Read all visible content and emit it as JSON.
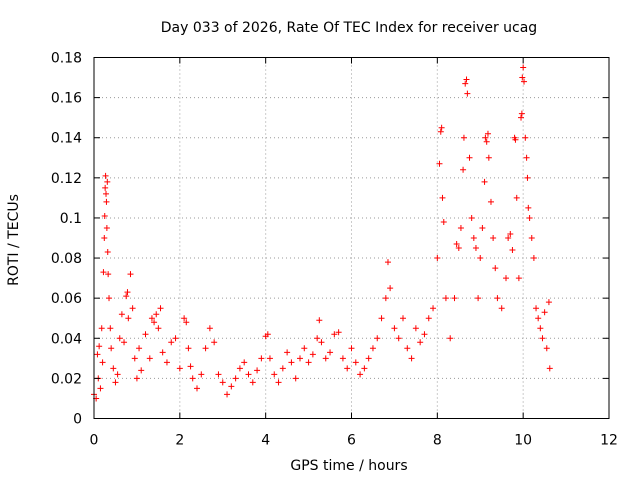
{
  "chart_data": {
    "type": "scatter",
    "title": "Day 033 of 2026, Rate Of TEC Index for receiver ucag",
    "xlabel": "GPS time / hours",
    "ylabel": "ROTI / TECUs",
    "xlim": [
      0,
      12
    ],
    "ylim": [
      0,
      0.18
    ],
    "x_ticks": [
      "0",
      "2",
      "4",
      "6",
      "8",
      "10",
      "12"
    ],
    "y_ticks": [
      "0",
      "0.02",
      "0.04",
      "0.06",
      "0.08",
      "0.1",
      "0.12",
      "0.14",
      "0.16",
      "0.18"
    ],
    "grid": true,
    "marker": "+",
    "color": "#ff0000",
    "series": [
      {
        "name": "ROTI",
        "points": [
          [
            0.0,
            0.012
          ],
          [
            0.05,
            0.01
          ],
          [
            0.08,
            0.032
          ],
          [
            0.1,
            0.02
          ],
          [
            0.12,
            0.036
          ],
          [
            0.15,
            0.015
          ],
          [
            0.18,
            0.045
          ],
          [
            0.2,
            0.028
          ],
          [
            0.22,
            0.073
          ],
          [
            0.24,
            0.09
          ],
          [
            0.25,
            0.101
          ],
          [
            0.26,
            0.115
          ],
          [
            0.27,
            0.121
          ],
          [
            0.28,
            0.112
          ],
          [
            0.29,
            0.108
          ],
          [
            0.3,
            0.095
          ],
          [
            0.31,
            0.118
          ],
          [
            0.32,
            0.083
          ],
          [
            0.33,
            0.072
          ],
          [
            0.35,
            0.06
          ],
          [
            0.38,
            0.045
          ],
          [
            0.4,
            0.035
          ],
          [
            0.45,
            0.025
          ],
          [
            0.5,
            0.018
          ],
          [
            0.55,
            0.022
          ],
          [
            0.6,
            0.04
          ],
          [
            0.65,
            0.052
          ],
          [
            0.7,
            0.038
          ],
          [
            0.75,
            0.061
          ],
          [
            0.78,
            0.063
          ],
          [
            0.8,
            0.05
          ],
          [
            0.85,
            0.072
          ],
          [
            0.9,
            0.055
          ],
          [
            0.95,
            0.03
          ],
          [
            1.0,
            0.02
          ],
          [
            1.05,
            0.035
          ],
          [
            1.1,
            0.024
          ],
          [
            1.2,
            0.042
          ],
          [
            1.3,
            0.03
          ],
          [
            1.35,
            0.05
          ],
          [
            1.4,
            0.048
          ],
          [
            1.45,
            0.052
          ],
          [
            1.5,
            0.045
          ],
          [
            1.55,
            0.055
          ],
          [
            1.6,
            0.033
          ],
          [
            1.7,
            0.028
          ],
          [
            1.8,
            0.038
          ],
          [
            1.9,
            0.04
          ],
          [
            2.0,
            0.025
          ],
          [
            2.1,
            0.05
          ],
          [
            2.15,
            0.048
          ],
          [
            2.2,
            0.035
          ],
          [
            2.25,
            0.026
          ],
          [
            2.3,
            0.02
          ],
          [
            2.4,
            0.015
          ],
          [
            2.5,
            0.022
          ],
          [
            2.6,
            0.035
          ],
          [
            2.7,
            0.045
          ],
          [
            2.8,
            0.038
          ],
          [
            2.9,
            0.022
          ],
          [
            3.0,
            0.018
          ],
          [
            3.1,
            0.012
          ],
          [
            3.2,
            0.016
          ],
          [
            3.3,
            0.02
          ],
          [
            3.4,
            0.025
          ],
          [
            3.5,
            0.028
          ],
          [
            3.6,
            0.022
          ],
          [
            3.7,
            0.018
          ],
          [
            3.8,
            0.024
          ],
          [
            3.9,
            0.03
          ],
          [
            4.0,
            0.041
          ],
          [
            4.05,
            0.042
          ],
          [
            4.1,
            0.03
          ],
          [
            4.2,
            0.022
          ],
          [
            4.3,
            0.018
          ],
          [
            4.4,
            0.025
          ],
          [
            4.5,
            0.033
          ],
          [
            4.6,
            0.028
          ],
          [
            4.7,
            0.02
          ],
          [
            4.8,
            0.03
          ],
          [
            4.9,
            0.035
          ],
          [
            5.0,
            0.028
          ],
          [
            5.1,
            0.032
          ],
          [
            5.2,
            0.04
          ],
          [
            5.25,
            0.049
          ],
          [
            5.3,
            0.038
          ],
          [
            5.4,
            0.03
          ],
          [
            5.5,
            0.033
          ],
          [
            5.6,
            0.042
          ],
          [
            5.7,
            0.043
          ],
          [
            5.8,
            0.03
          ],
          [
            5.9,
            0.025
          ],
          [
            6.0,
            0.035
          ],
          [
            6.1,
            0.028
          ],
          [
            6.2,
            0.022
          ],
          [
            6.3,
            0.025
          ],
          [
            6.4,
            0.03
          ],
          [
            6.5,
            0.035
          ],
          [
            6.6,
            0.04
          ],
          [
            6.7,
            0.05
          ],
          [
            6.8,
            0.06
          ],
          [
            6.85,
            0.078
          ],
          [
            6.9,
            0.065
          ],
          [
            7.0,
            0.045
          ],
          [
            7.1,
            0.04
          ],
          [
            7.2,
            0.05
          ],
          [
            7.3,
            0.035
          ],
          [
            7.4,
            0.03
          ],
          [
            7.5,
            0.045
          ],
          [
            7.6,
            0.038
          ],
          [
            7.7,
            0.042
          ],
          [
            7.8,
            0.05
          ],
          [
            7.9,
            0.055
          ],
          [
            8.0,
            0.08
          ],
          [
            8.05,
            0.127
          ],
          [
            8.08,
            0.143
          ],
          [
            8.1,
            0.145
          ],
          [
            8.12,
            0.11
          ],
          [
            8.15,
            0.098
          ],
          [
            8.2,
            0.06
          ],
          [
            8.3,
            0.04
          ],
          [
            8.4,
            0.06
          ],
          [
            8.45,
            0.087
          ],
          [
            8.5,
            0.085
          ],
          [
            8.55,
            0.095
          ],
          [
            8.6,
            0.124
          ],
          [
            8.62,
            0.14
          ],
          [
            8.65,
            0.167
          ],
          [
            8.68,
            0.169
          ],
          [
            8.7,
            0.162
          ],
          [
            8.75,
            0.13
          ],
          [
            8.8,
            0.1
          ],
          [
            8.85,
            0.09
          ],
          [
            8.9,
            0.085
          ],
          [
            8.95,
            0.06
          ],
          [
            9.0,
            0.08
          ],
          [
            9.05,
            0.095
          ],
          [
            9.1,
            0.118
          ],
          [
            9.12,
            0.14
          ],
          [
            9.15,
            0.138
          ],
          [
            9.18,
            0.142
          ],
          [
            9.2,
            0.13
          ],
          [
            9.25,
            0.108
          ],
          [
            9.3,
            0.09
          ],
          [
            9.35,
            0.075
          ],
          [
            9.4,
            0.06
          ],
          [
            9.5,
            0.055
          ],
          [
            9.6,
            0.07
          ],
          [
            9.65,
            0.09
          ],
          [
            9.7,
            0.092
          ],
          [
            9.75,
            0.084
          ],
          [
            9.8,
            0.14
          ],
          [
            9.82,
            0.139
          ],
          [
            9.85,
            0.11
          ],
          [
            9.9,
            0.07
          ],
          [
            9.95,
            0.15
          ],
          [
            9.97,
            0.152
          ],
          [
            9.98,
            0.17
          ],
          [
            10.0,
            0.175
          ],
          [
            10.02,
            0.168
          ],
          [
            10.05,
            0.14
          ],
          [
            10.08,
            0.13
          ],
          [
            10.1,
            0.12
          ],
          [
            10.12,
            0.105
          ],
          [
            10.15,
            0.1
          ],
          [
            10.2,
            0.09
          ],
          [
            10.25,
            0.08
          ],
          [
            10.3,
            0.055
          ],
          [
            10.35,
            0.05
          ],
          [
            10.4,
            0.045
          ],
          [
            10.45,
            0.04
          ],
          [
            10.5,
            0.053
          ],
          [
            10.55,
            0.035
          ],
          [
            10.6,
            0.058
          ],
          [
            10.62,
            0.025
          ]
        ]
      }
    ]
  }
}
